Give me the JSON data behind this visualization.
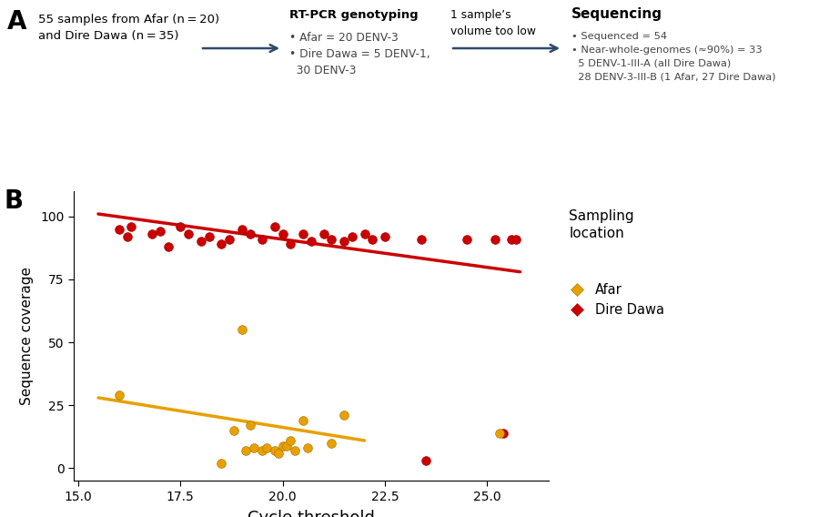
{
  "afar_x": [
    16.0,
    18.5,
    18.8,
    19.0,
    19.1,
    19.2,
    19.3,
    19.5,
    19.6,
    19.8,
    19.9,
    20.0,
    20.1,
    20.2,
    20.3,
    20.5,
    20.6,
    21.2,
    21.5,
    25.3
  ],
  "afar_y": [
    29,
    2,
    15,
    55,
    7,
    17,
    8,
    7,
    8,
    7,
    6,
    9,
    9,
    11,
    7,
    19,
    8,
    10,
    21,
    14
  ],
  "dire_x": [
    16.0,
    16.2,
    16.3,
    16.8,
    17.0,
    17.2,
    17.5,
    17.7,
    18.0,
    18.2,
    18.5,
    18.7,
    19.0,
    19.2,
    19.5,
    19.8,
    20.0,
    20.2,
    20.5,
    20.7,
    21.0,
    21.2,
    21.5,
    21.7,
    22.0,
    22.2,
    22.5,
    23.5,
    23.4,
    24.5,
    25.2,
    25.4,
    25.6,
    25.7
  ],
  "dire_y": [
    95,
    92,
    96,
    93,
    94,
    88,
    96,
    93,
    90,
    92,
    89,
    91,
    95,
    93,
    91,
    96,
    93,
    89,
    93,
    90,
    93,
    91,
    90,
    92,
    93,
    91,
    92,
    3,
    91,
    91,
    91,
    14,
    91,
    91
  ],
  "afar_trend_x": [
    15.5,
    22.0
  ],
  "afar_trend_y": [
    28,
    11
  ],
  "dire_trend_x": [
    15.5,
    25.8
  ],
  "dire_trend_y": [
    101,
    78
  ],
  "xlabel": "Cycle threshold",
  "ylabel": "Sequence coverage",
  "xlim": [
    14.9,
    26.5
  ],
  "ylim": [
    -5,
    110
  ],
  "xticks": [
    15.0,
    17.5,
    20.0,
    22.5,
    25.0
  ],
  "xtick_labels": [
    "15.0",
    "17.5",
    "20.0",
    "22.5",
    "25.0"
  ],
  "yticks": [
    0,
    25,
    50,
    75,
    100
  ],
  "afar_color": "#E8A000",
  "dire_color": "#CC0000",
  "arrow_color": "#2E4A6B",
  "panel_a_box1": "55 samples from Afar (n = 20)\nand Dire Dawa (n = 35)",
  "panel_a_box2_title": "RT-PCR genotyping",
  "panel_a_box2_body": "• Afar = 20 DENV-3\n• Dire Dawa = 5 DENV-1,\n  30 DENV-3",
  "panel_a_box3": "1 sample’s\nvolume too low",
  "panel_a_box4_title": "Sequencing",
  "panel_a_box4_body": "• Sequenced = 54\n• Near-whole-genomes (≈90%) = 33\n  5 DENV-1-III-A (all Dire Dawa)\n  28 DENV-3-III-B (1 Afar, 27 Dire Dawa)"
}
